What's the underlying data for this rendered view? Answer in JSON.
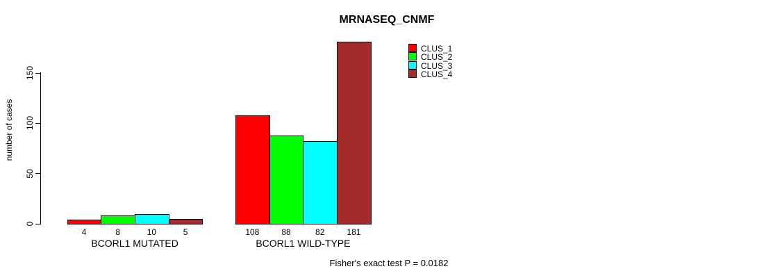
{
  "chart_data": {
    "type": "bar",
    "title": "MRNASEQ_CNMF",
    "xlabel": "",
    "ylabel": "number of cases",
    "categories": [
      "BCORL1 MUTATED",
      "BCORL1 WILD-TYPE"
    ],
    "series": [
      {
        "name": "CLUS_1",
        "color": "#FF0000",
        "values": [
          4,
          108
        ]
      },
      {
        "name": "CLUS_2",
        "color": "#00FF00",
        "values": [
          8,
          88
        ]
      },
      {
        "name": "CLUS_3",
        "color": "#00FFFF",
        "values": [
          10,
          82
        ]
      },
      {
        "name": "CLUS_4",
        "color": "#A52A2A",
        "values": [
          5,
          181
        ]
      }
    ],
    "yticks": [
      0,
      50,
      100,
      150
    ],
    "ylim": [
      0,
      183
    ],
    "grid": false,
    "bar_value_labels_shown": true,
    "legend_position": "top-right",
    "annotation": "Fisher's exact test P = 0.0182"
  }
}
